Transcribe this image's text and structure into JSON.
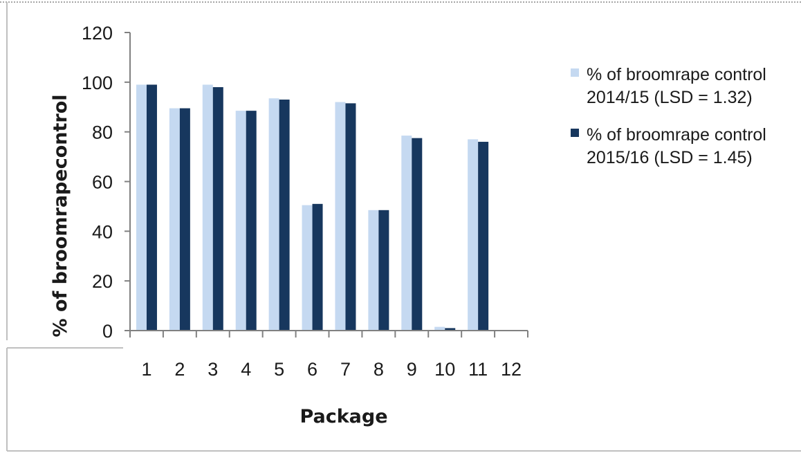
{
  "chart_data": {
    "type": "bar",
    "title": "",
    "xlabel": "Package",
    "ylabel": "% of broomrapecontrol",
    "ylim": [
      0,
      120
    ],
    "yticks": [
      0,
      20,
      40,
      60,
      80,
      100,
      120
    ],
    "grid": false,
    "legend_position": "right",
    "categories": [
      "1",
      "2",
      "3",
      "4",
      "5",
      "6",
      "7",
      "8",
      "9",
      "10",
      "11",
      "12"
    ],
    "series": [
      {
        "name": "% of broomrape control 2014/15 (LSD = 1.32)",
        "name_lines": [
          "% of broomrape control",
          "2014/15 (LSD = 1.32)"
        ],
        "color": "#c5d9f1",
        "values": [
          99,
          89.5,
          99,
          88.5,
          93.5,
          50.5,
          92,
          48.5,
          78.5,
          1.5,
          77,
          null
        ]
      },
      {
        "name": "% of broomrape control 2015/16 (LSD = 1.45)",
        "name_lines": [
          "% of broomrape control",
          "2015/16 (LSD = 1.45)"
        ],
        "color": "#17375e",
        "values": [
          99,
          89.5,
          98,
          88.5,
          93,
          51,
          91.5,
          48.5,
          77.5,
          1,
          76,
          null
        ]
      }
    ]
  }
}
